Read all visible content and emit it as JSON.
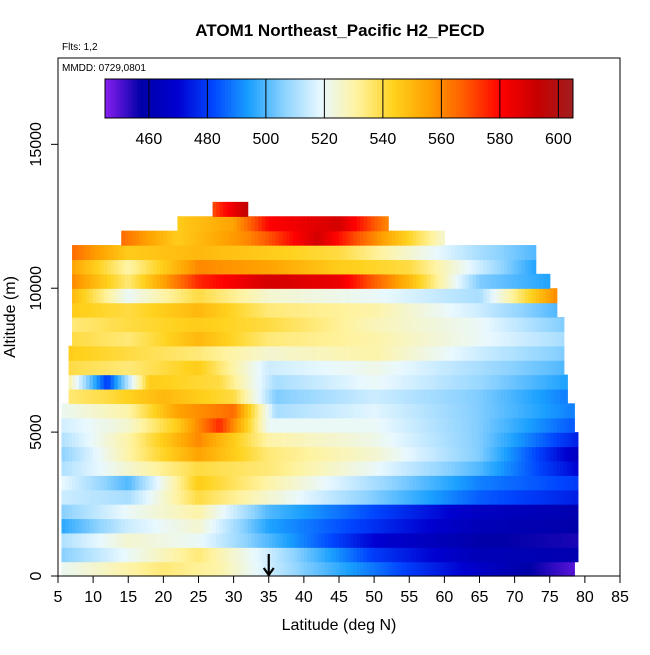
{
  "chart_data": {
    "type": "heatmap",
    "title": "ATOM1 Northeast_Pacific H2_PECD",
    "note_flights": "Flts: 1,2",
    "note_dates": "MMDD: 0729,0801",
    "xlabel": "Latitude (deg N)",
    "ylabel": "Altitude (m)",
    "xlim": [
      5,
      85
    ],
    "ylim": [
      0,
      18000
    ],
    "x_ticks": [
      5,
      10,
      15,
      20,
      25,
      30,
      35,
      40,
      45,
      50,
      55,
      60,
      65,
      70,
      75,
      80,
      85
    ],
    "y_ticks": [
      0,
      5000,
      10000,
      15000
    ],
    "colorbar": {
      "min": 445,
      "max": 605,
      "ticks": [
        460,
        480,
        500,
        520,
        540,
        560,
        580,
        600
      ],
      "colors": [
        "#8a1ff0",
        "#0000a8",
        "#0000d0",
        "#0046ff",
        "#1aa0ff",
        "#8fd3ff",
        "#e8f8ff",
        "#fff3a0",
        "#ffd21e",
        "#ffa000",
        "#ff5a00",
        "#ff0000",
        "#c80000",
        "#a01e1e"
      ]
    },
    "marker": {
      "x": 35,
      "y": 0,
      "symbol": "down-arrow"
    },
    "profile_rows": [
      {
        "y0": 0,
        "y1": 500,
        "x0": 5.5,
        "x1": 78.5,
        "stops": [
          [
            5,
            520
          ],
          [
            20,
            535
          ],
          [
            28,
            530
          ],
          [
            40,
            505
          ],
          [
            55,
            480
          ],
          [
            70,
            460
          ],
          [
            78,
            450
          ]
        ]
      },
      {
        "y0": 500,
        "y1": 1000,
        "x0": 5.5,
        "x1": 79,
        "stops": [
          [
            5,
            505
          ],
          [
            15,
            520
          ],
          [
            25,
            535
          ],
          [
            35,
            515
          ],
          [
            50,
            480
          ],
          [
            65,
            462
          ],
          [
            79,
            460
          ]
        ]
      },
      {
        "y0": 1000,
        "y1": 1500,
        "x0": 5.5,
        "x1": 79,
        "stops": [
          [
            5,
            510
          ],
          [
            15,
            525
          ],
          [
            25,
            520
          ],
          [
            35,
            500
          ],
          [
            50,
            470
          ],
          [
            65,
            458
          ],
          [
            79,
            455
          ]
        ]
      },
      {
        "y0": 1500,
        "y1": 2000,
        "x0": 5.5,
        "x1": 79,
        "stops": [
          [
            5,
            495
          ],
          [
            15,
            515
          ],
          [
            25,
            525
          ],
          [
            35,
            495
          ],
          [
            50,
            478
          ],
          [
            65,
            462
          ],
          [
            79,
            458
          ]
        ]
      },
      {
        "y0": 2000,
        "y1": 2500,
        "x0": 5.5,
        "x1": 79,
        "stops": [
          [
            5,
            505
          ],
          [
            15,
            520
          ],
          [
            25,
            530
          ],
          [
            35,
            500
          ],
          [
            50,
            482
          ],
          [
            65,
            465
          ],
          [
            79,
            460
          ]
        ]
      },
      {
        "y0": 2500,
        "y1": 3000,
        "x0": 5.5,
        "x1": 79,
        "stops": [
          [
            5,
            515
          ],
          [
            15,
            510
          ],
          [
            25,
            540
          ],
          [
            35,
            525
          ],
          [
            50,
            505
          ],
          [
            65,
            485
          ],
          [
            79,
            475
          ]
        ]
      },
      {
        "y0": 3000,
        "y1": 3500,
        "x0": 5.5,
        "x1": 79,
        "stops": [
          [
            5,
            520
          ],
          [
            15,
            500
          ],
          [
            25,
            545
          ],
          [
            35,
            530
          ],
          [
            50,
            510
          ],
          [
            65,
            490
          ],
          [
            79,
            480
          ]
        ]
      },
      {
        "y0": 3500,
        "y1": 4000,
        "x0": 5.5,
        "x1": 79,
        "stops": [
          [
            5,
            510
          ],
          [
            15,
            525
          ],
          [
            25,
            540
          ],
          [
            35,
            535
          ],
          [
            50,
            520
          ],
          [
            65,
            500
          ],
          [
            79,
            470
          ]
        ]
      },
      {
        "y0": 4000,
        "y1": 4500,
        "x0": 5.5,
        "x1": 79,
        "stops": [
          [
            5,
            505
          ],
          [
            15,
            530
          ],
          [
            25,
            555
          ],
          [
            35,
            535
          ],
          [
            50,
            525
          ],
          [
            65,
            505
          ],
          [
            79,
            465
          ]
        ]
      },
      {
        "y0": 4500,
        "y1": 5000,
        "x0": 5.5,
        "x1": 79,
        "stops": [
          [
            5,
            510
          ],
          [
            15,
            530
          ],
          [
            25,
            560
          ],
          [
            35,
            530
          ],
          [
            50,
            522
          ],
          [
            65,
            505
          ],
          [
            79,
            475
          ]
        ]
      },
      {
        "y0": 5000,
        "y1": 5500,
        "x0": 5.5,
        "x1": 78.5,
        "stops": [
          [
            5,
            515
          ],
          [
            15,
            525
          ],
          [
            22,
            545
          ],
          [
            28,
            575
          ],
          [
            35,
            520
          ],
          [
            50,
            520
          ],
          [
            65,
            505
          ],
          [
            78,
            485
          ]
        ]
      },
      {
        "y0": 5500,
        "y1": 6000,
        "x0": 5.5,
        "x1": 78.5,
        "stops": [
          [
            5,
            520
          ],
          [
            15,
            530
          ],
          [
            22,
            555
          ],
          [
            30,
            565
          ],
          [
            36,
            510
          ],
          [
            50,
            518
          ],
          [
            65,
            505
          ],
          [
            78,
            490
          ]
        ]
      },
      {
        "y0": 6000,
        "y1": 6500,
        "x0": 6.5,
        "x1": 77.5,
        "stops": [
          [
            6,
            535
          ],
          [
            12,
            540
          ],
          [
            20,
            550
          ],
          [
            30,
            540
          ],
          [
            36,
            505
          ],
          [
            50,
            515
          ],
          [
            65,
            505
          ],
          [
            77,
            490
          ]
        ]
      },
      {
        "y0": 6500,
        "y1": 7000,
        "x0": 6.5,
        "x1": 77.5,
        "stops": [
          [
            6,
            535
          ],
          [
            12,
            480
          ],
          [
            18,
            545
          ],
          [
            28,
            540
          ],
          [
            36,
            510
          ],
          [
            50,
            520
          ],
          [
            65,
            508
          ],
          [
            77,
            495
          ]
        ]
      },
      {
        "y0": 7000,
        "y1": 7500,
        "x0": 6.5,
        "x1": 77,
        "stops": [
          [
            6,
            540
          ],
          [
            15,
            535
          ],
          [
            25,
            545
          ],
          [
            35,
            515
          ],
          [
            50,
            522
          ],
          [
            65,
            510
          ],
          [
            77,
            500
          ]
        ]
      },
      {
        "y0": 7500,
        "y1": 8000,
        "x0": 6.5,
        "x1": 77,
        "stops": [
          [
            6,
            545
          ],
          [
            15,
            540
          ],
          [
            25,
            535
          ],
          [
            35,
            525
          ],
          [
            50,
            530
          ],
          [
            65,
            515
          ],
          [
            77,
            505
          ]
        ]
      },
      {
        "y0": 8000,
        "y1": 8500,
        "x0": 7,
        "x1": 77,
        "stops": [
          [
            7,
            540
          ],
          [
            15,
            535
          ],
          [
            25,
            550
          ],
          [
            35,
            535
          ],
          [
            50,
            530
          ],
          [
            65,
            520
          ],
          [
            77,
            510
          ]
        ]
      },
      {
        "y0": 8500,
        "y1": 9000,
        "x0": 7,
        "x1": 77,
        "stops": [
          [
            7,
            535
          ],
          [
            15,
            540
          ],
          [
            25,
            545
          ],
          [
            35,
            540
          ],
          [
            50,
            528
          ],
          [
            65,
            520
          ],
          [
            77,
            505
          ]
        ]
      },
      {
        "y0": 9000,
        "y1": 9500,
        "x0": 7,
        "x1": 76,
        "stops": [
          [
            7,
            545
          ],
          [
            15,
            540
          ],
          [
            25,
            550
          ],
          [
            35,
            535
          ],
          [
            50,
            530
          ],
          [
            65,
            515
          ],
          [
            76,
            500
          ]
        ]
      },
      {
        "y0": 9500,
        "y1": 10000,
        "x0": 7,
        "x1": 76,
        "stops": [
          [
            7,
            550
          ],
          [
            15,
            520
          ],
          [
            25,
            540
          ],
          [
            35,
            525
          ],
          [
            50,
            520
          ],
          [
            65,
            510
          ],
          [
            76,
            560
          ]
        ]
      },
      {
        "y0": 10000,
        "y1": 10500,
        "x0": 7,
        "x1": 75,
        "stops": [
          [
            7,
            560
          ],
          [
            15,
            535
          ],
          [
            25,
            575
          ],
          [
            35,
            590
          ],
          [
            45,
            585
          ],
          [
            55,
            550
          ],
          [
            65,
            505
          ],
          [
            75,
            495
          ]
        ]
      },
      {
        "y0": 10500,
        "y1": 11000,
        "x0": 7,
        "x1": 73,
        "stops": [
          [
            7,
            555
          ],
          [
            15,
            530
          ],
          [
            25,
            560
          ],
          [
            35,
            555
          ],
          [
            45,
            545
          ],
          [
            55,
            540
          ],
          [
            65,
            515
          ],
          [
            73,
            495
          ]
        ]
      },
      {
        "y0": 11000,
        "y1": 11500,
        "x0": 7,
        "x1": 73,
        "stops": [
          [
            7,
            565
          ],
          [
            15,
            545
          ],
          [
            25,
            550
          ],
          [
            35,
            545
          ],
          [
            45,
            540
          ],
          [
            55,
            525
          ],
          [
            65,
            510
          ],
          [
            73,
            500
          ]
        ]
      },
      {
        "y0": 11500,
        "y1": 12000,
        "x0": 14,
        "x1": 60,
        "stops": [
          [
            14,
            565
          ],
          [
            22,
            545
          ],
          [
            32,
            560
          ],
          [
            42,
            590
          ],
          [
            50,
            560
          ],
          [
            60,
            525
          ]
        ]
      },
      {
        "y0": 12000,
        "y1": 12500,
        "x0": 22,
        "x1": 52,
        "stops": [
          [
            22,
            545
          ],
          [
            30,
            555
          ],
          [
            35,
            580
          ],
          [
            45,
            590
          ],
          [
            52,
            560
          ]
        ]
      },
      {
        "y0": 12500,
        "y1": 13000,
        "x0": 27,
        "x1": 32,
        "stops": [
          [
            27,
            570
          ],
          [
            32,
            595
          ]
        ]
      }
    ]
  }
}
